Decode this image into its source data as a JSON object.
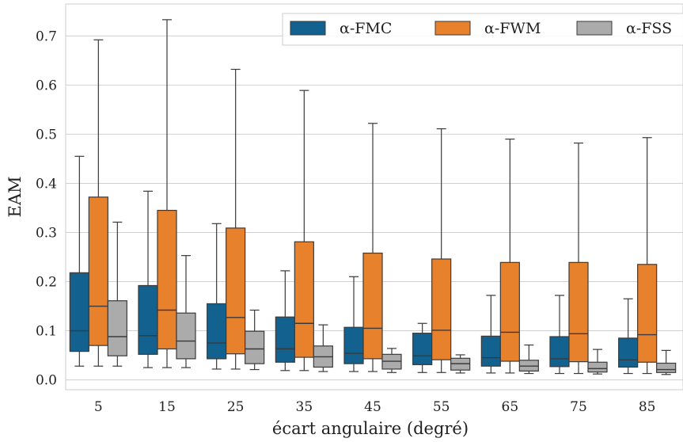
{
  "chart_data": {
    "type": "boxplot",
    "xlabel": "écart angulaire (degré)",
    "ylabel": "EAM",
    "ylim": [
      -0.02,
      0.765
    ],
    "yticks": [
      "0.0",
      "0.1",
      "0.2",
      "0.3",
      "0.4",
      "0.5",
      "0.6",
      "0.7"
    ],
    "categories": [
      "5",
      "15",
      "25",
      "35",
      "45",
      "55",
      "65",
      "75",
      "85"
    ],
    "grid": "horizontal",
    "legend_position": "top-right",
    "series": [
      {
        "name": "α-FMC",
        "color": "#12618f",
        "boxes": [
          {
            "whislo": 0.028,
            "q1": 0.058,
            "med": 0.1,
            "q3": 0.218,
            "whishi": 0.455
          },
          {
            "whislo": 0.025,
            "q1": 0.052,
            "med": 0.09,
            "q3": 0.192,
            "whishi": 0.384
          },
          {
            "whislo": 0.022,
            "q1": 0.043,
            "med": 0.075,
            "q3": 0.155,
            "whishi": 0.318
          },
          {
            "whislo": 0.019,
            "q1": 0.036,
            "med": 0.063,
            "q3": 0.128,
            "whishi": 0.222
          },
          {
            "whislo": 0.017,
            "q1": 0.033,
            "med": 0.054,
            "q3": 0.107,
            "whishi": 0.21
          },
          {
            "whislo": 0.015,
            "q1": 0.031,
            "med": 0.049,
            "q3": 0.095,
            "whishi": 0.115
          },
          {
            "whislo": 0.014,
            "q1": 0.028,
            "med": 0.045,
            "q3": 0.089,
            "whishi": 0.172
          },
          {
            "whislo": 0.013,
            "q1": 0.027,
            "med": 0.043,
            "q3": 0.088,
            "whishi": 0.172
          },
          {
            "whislo": 0.013,
            "q1": 0.026,
            "med": 0.041,
            "q3": 0.085,
            "whishi": 0.165
          }
        ]
      },
      {
        "name": "α-FWM",
        "color": "#e8812c",
        "boxes": [
          {
            "whislo": 0.028,
            "q1": 0.07,
            "med": 0.15,
            "q3": 0.372,
            "whishi": 0.692
          },
          {
            "whislo": 0.025,
            "q1": 0.063,
            "med": 0.142,
            "q3": 0.345,
            "whishi": 0.733
          },
          {
            "whislo": 0.022,
            "q1": 0.053,
            "med": 0.127,
            "q3": 0.309,
            "whishi": 0.632
          },
          {
            "whislo": 0.019,
            "q1": 0.046,
            "med": 0.115,
            "q3": 0.281,
            "whishi": 0.589
          },
          {
            "whislo": 0.017,
            "q1": 0.043,
            "med": 0.105,
            "q3": 0.258,
            "whishi": 0.522
          },
          {
            "whislo": 0.015,
            "q1": 0.041,
            "med": 0.101,
            "q3": 0.246,
            "whishi": 0.511
          },
          {
            "whislo": 0.014,
            "q1": 0.038,
            "med": 0.097,
            "q3": 0.239,
            "whishi": 0.49
          },
          {
            "whislo": 0.013,
            "q1": 0.037,
            "med": 0.094,
            "q3": 0.239,
            "whishi": 0.482
          },
          {
            "whislo": 0.013,
            "q1": 0.036,
            "med": 0.092,
            "q3": 0.235,
            "whishi": 0.493
          }
        ]
      },
      {
        "name": "α-FSS",
        "color": "#ababab",
        "boxes": [
          {
            "whislo": 0.028,
            "q1": 0.049,
            "med": 0.088,
            "q3": 0.161,
            "whishi": 0.321
          },
          {
            "whislo": 0.025,
            "q1": 0.043,
            "med": 0.079,
            "q3": 0.136,
            "whishi": 0.253
          },
          {
            "whislo": 0.021,
            "q1": 0.033,
            "med": 0.063,
            "q3": 0.099,
            "whishi": 0.142
          },
          {
            "whislo": 0.017,
            "q1": 0.026,
            "med": 0.047,
            "q3": 0.069,
            "whishi": 0.112
          },
          {
            "whislo": 0.015,
            "q1": 0.022,
            "med": 0.038,
            "q3": 0.052,
            "whishi": 0.064
          },
          {
            "whislo": 0.014,
            "q1": 0.02,
            "med": 0.033,
            "q3": 0.044,
            "whishi": 0.051
          },
          {
            "whislo": 0.013,
            "q1": 0.018,
            "med": 0.028,
            "q3": 0.04,
            "whishi": 0.071
          },
          {
            "whislo": 0.012,
            "q1": 0.016,
            "med": 0.023,
            "q3": 0.036,
            "whishi": 0.062
          },
          {
            "whislo": 0.011,
            "q1": 0.015,
            "med": 0.021,
            "q3": 0.034,
            "whishi": 0.06
          }
        ]
      }
    ]
  }
}
